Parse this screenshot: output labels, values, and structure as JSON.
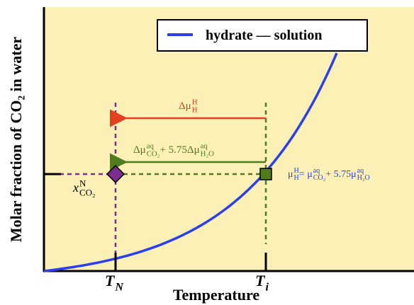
{
  "y_axis_label": "Molar fraction of CO₂ in water",
  "x_axis_label": "Temperature",
  "legend": "hydrate — solution",
  "x_ticks": [
    [
      {
        "text": "T",
        "sub": "N"
      }
    ],
    [
      {
        "text": "T",
        "sub": "i"
      }
    ]
  ],
  "annotations": {
    "delta_h": [
      {
        "text": "Δμ",
        "sup": "H",
        "sub": "H"
      }
    ],
    "delta_aq": [
      {
        "text": "Δμ",
        "sup": "aq",
        "sub": "CO₂"
      },
      {
        "text": " + 5.75Δμ",
        "sup": "aq",
        "sub": "H₂O"
      }
    ],
    "x_n": [
      {
        "text": "x",
        "sup": "N",
        "sub": "CO₂"
      }
    ],
    "equilibrium": [
      {
        "text": "μ",
        "sup": "H",
        "sub": "H"
      },
      {
        "text": " = μ",
        "sup": "aq",
        "sub": "CO₂"
      },
      {
        "text": " + 5.75μ",
        "sup": "aq",
        "sub": "H₂O"
      }
    ]
  }
}
